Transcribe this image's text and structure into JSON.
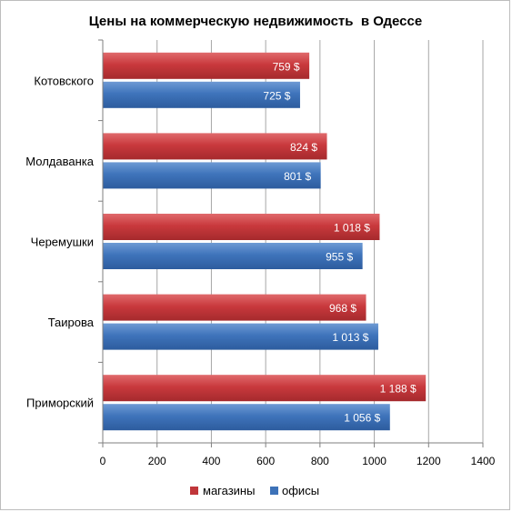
{
  "chart_data": {
    "type": "bar",
    "orientation": "horizontal",
    "title": "Цены на коммерческую недвижимость  в Одессе",
    "categories": [
      "Котовского",
      "Молдаванка",
      "Черемушки",
      "Таирова",
      "Приморский"
    ],
    "series": [
      {
        "name": "магазины",
        "color": "#c0363a",
        "values": [
          759,
          824,
          1018,
          968,
          1188
        ],
        "labels": [
          "759 $",
          "824 $",
          "1 018 $",
          "968 $",
          "1 188 $"
        ]
      },
      {
        "name": "офисы",
        "color": "#3d72b8",
        "values": [
          725,
          801,
          955,
          1013,
          1056
        ],
        "labels": [
          "725 $",
          "801 $",
          "955 $",
          "1 013 $",
          "1 056 $"
        ]
      }
    ],
    "xlim": [
      0,
      1400
    ],
    "xticks": [
      "0",
      "200",
      "400",
      "600",
      "800",
      "1000",
      "1200",
      "1400"
    ],
    "grid": true,
    "legend": "bottom"
  }
}
